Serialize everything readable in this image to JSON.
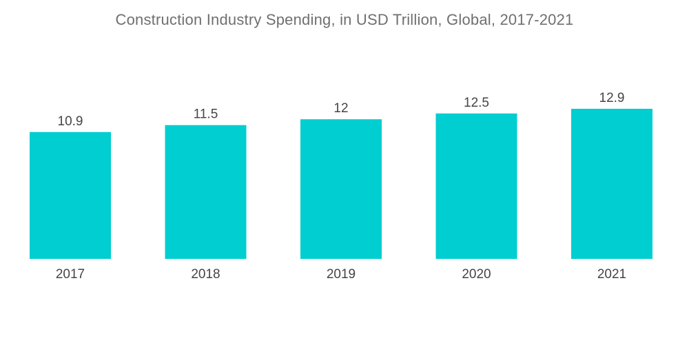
{
  "chart_data": {
    "type": "bar",
    "title": "Construction Industry Spending, in USD Trillion, Global, 2017-2021",
    "categories": [
      "2017",
      "2018",
      "2019",
      "2020",
      "2021"
    ],
    "values": [
      10.9,
      11.5,
      12,
      12.5,
      12.9
    ],
    "value_labels": [
      "10.9",
      "11.5",
      "12",
      "12.5",
      "12.9"
    ],
    "xlabel": "",
    "ylabel": "",
    "ylim": [
      0,
      12.9
    ],
    "grid": false,
    "legend": "none",
    "bar_color": "#00CED1"
  }
}
